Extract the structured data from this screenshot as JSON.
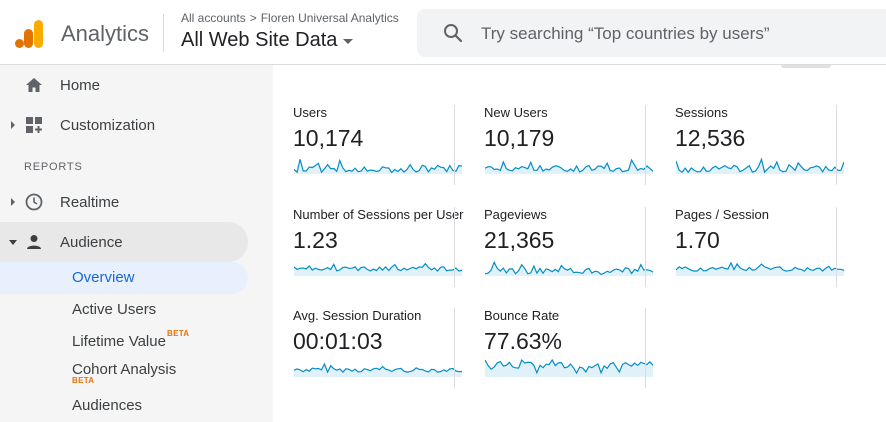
{
  "header": {
    "app_name": "Analytics",
    "breadcrumb_root": "All accounts",
    "breadcrumb_sep": ">",
    "breadcrumb_account": "Floren Universal Analytics",
    "view_name": "All Web Site Data",
    "search_placeholder": "Try searching “Top countries by users”"
  },
  "sidebar": {
    "home": "Home",
    "customization": "Customization",
    "reports_label": "REPORTS",
    "realtime": "Realtime",
    "audience": "Audience",
    "sub_items": {
      "overview": "Overview",
      "active_users": "Active Users",
      "lifetime_value": "Lifetime Value",
      "cohort_analysis": "Cohort Analysis",
      "audiences": "Audiences",
      "beta": "BETA"
    }
  },
  "metrics": [
    {
      "label": "Users",
      "value": "10,174"
    },
    {
      "label": "New Users",
      "value": "10,179"
    },
    {
      "label": "Sessions",
      "value": "12,536"
    },
    {
      "label": "Number of Sessions per User",
      "value": "1.23"
    },
    {
      "label": "Pageviews",
      "value": "21,365"
    },
    {
      "label": "Pages / Session",
      "value": "1.70"
    },
    {
      "label": "Avg. Session Duration",
      "value": "00:01:03"
    },
    {
      "label": "Bounce Rate",
      "value": "77.63%"
    }
  ],
  "colors": {
    "sparkline_stroke": "#058dc7",
    "sparkline_fill": "#e1f1f9",
    "logo_orange": "#f9ab00",
    "logo_dark_orange": "#e37400",
    "selected_text": "#1967d2"
  }
}
